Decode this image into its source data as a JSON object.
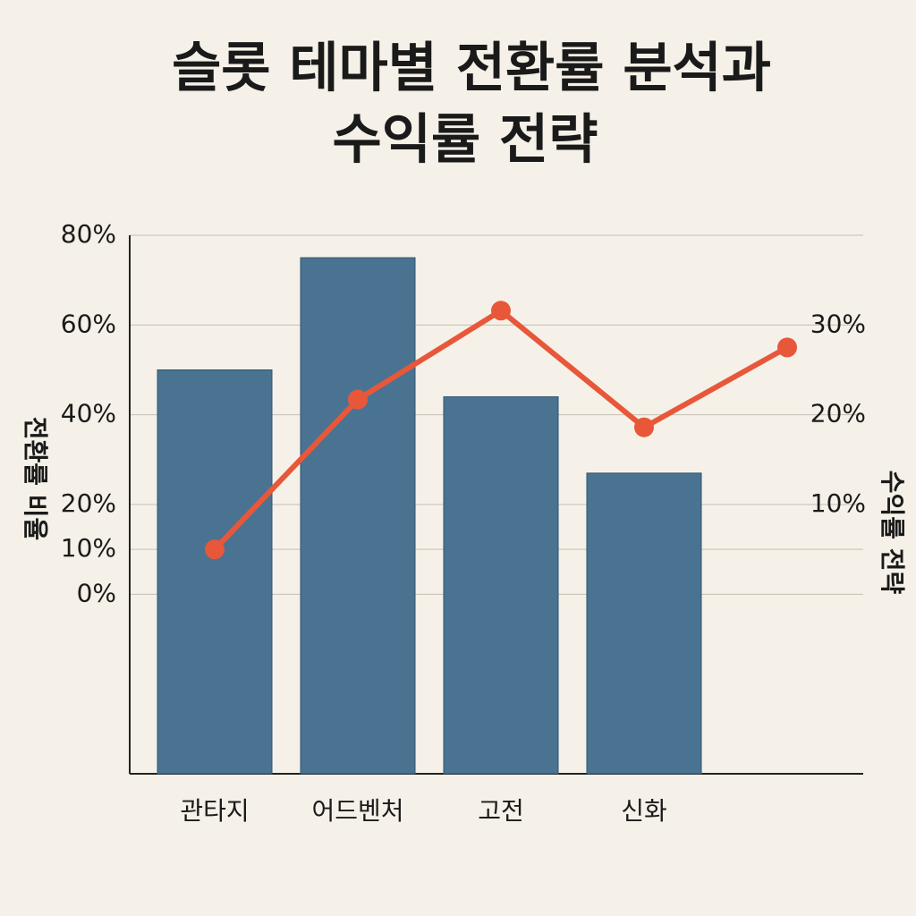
{
  "chart_data": {
    "type": "bar-line",
    "title": [
      "슬롯 테마별 전환률 분석과",
      "수익률 전략"
    ],
    "y_label": "전환률 비율",
    "y2_label": "수익률 전략",
    "categories": [
      "관타지",
      "어드벤처",
      "고전",
      "신화",
      null
    ],
    "series": [
      {
        "type": "bar",
        "color": "#4a7391",
        "values": [
          50,
          75,
          44,
          27,
          null
        ]
      },
      {
        "type": "line",
        "color": "#e8573a",
        "axis": "y2",
        "values": [
          5,
          21.7,
          31.6,
          18.6,
          27.5
        ]
      }
    ],
    "ylim": [
      -40,
      80
    ],
    "yticks": [
      {
        "value": 80,
        "label": "80%"
      },
      {
        "value": 60,
        "label": "60%"
      },
      {
        "value": 40,
        "label": "40%"
      },
      {
        "value": 20,
        "label": "20%"
      },
      {
        "value": 10,
        "label": "10%"
      },
      {
        "value": 0,
        "label": "0%"
      }
    ],
    "y2lim": [
      -20,
      40
    ],
    "y2ticks": [
      {
        "value": 30,
        "label": "30%"
      },
      {
        "value": 20,
        "label": "20%"
      },
      {
        "value": 10,
        "label": "10%"
      }
    ],
    "grid": true
  }
}
